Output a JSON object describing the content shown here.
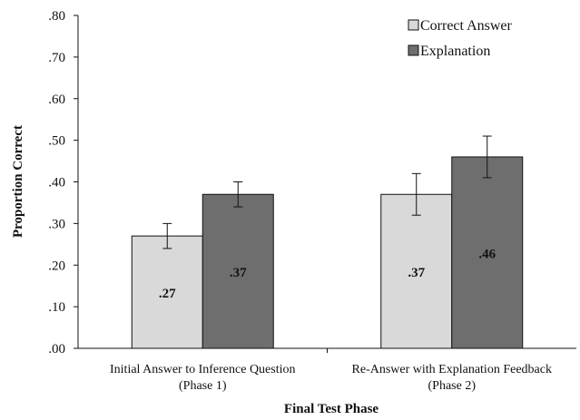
{
  "chart_data": {
    "type": "bar",
    "xlabel": "Final Test Phase",
    "ylabel": "Proportion Correct",
    "ylim": [
      0,
      0.8
    ],
    "yticks": [
      0,
      0.1,
      0.2,
      0.3,
      0.4,
      0.5,
      0.6,
      0.7,
      0.8
    ],
    "ytick_labels": [
      ".00",
      ".10",
      ".20",
      ".30",
      ".40",
      ".50",
      ".60",
      ".70",
      ".80"
    ],
    "categories": [
      [
        "Initial Answer to Inference Question",
        "(Phase 1)"
      ],
      [
        "Re-Answer with Explanation Feedback",
        "(Phase 2)"
      ]
    ],
    "series": [
      {
        "name": "Correct Answer",
        "color": "#d9d9d9",
        "values": [
          0.27,
          0.37
        ],
        "error": [
          0.03,
          0.05
        ],
        "labels": [
          ".27",
          ".37"
        ]
      },
      {
        "name": "Explanation",
        "color": "#6e6e6e",
        "values": [
          0.37,
          0.46
        ],
        "error": [
          0.03,
          0.05
        ],
        "labels": [
          ".37",
          ".46"
        ]
      }
    ],
    "legend_position": "top-right",
    "grid": false
  }
}
